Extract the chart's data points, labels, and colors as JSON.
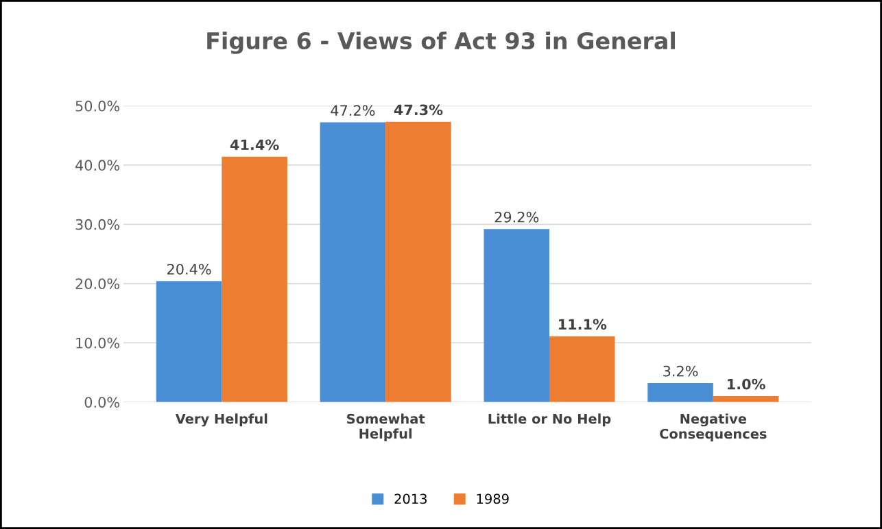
{
  "chart_data": {
    "type": "bar",
    "title": "Figure 6 - Views of Act 93 in General",
    "categories": [
      "Very Helpful",
      "Somewhat\nHelpful",
      "Little or No Help",
      "Negative\nConsequences"
    ],
    "series": [
      {
        "name": "2013",
        "color": "#4a8fd6",
        "values": [
          20.4,
          47.2,
          29.2,
          3.2
        ],
        "value_labels": [
          "20.4%",
          "47.2%",
          "29.2%",
          "3.2%"
        ]
      },
      {
        "name": "1989",
        "color": "#ed7d31",
        "values": [
          41.4,
          47.3,
          11.1,
          1.0
        ],
        "value_labels": [
          "41.4%",
          "47.3%",
          "11.1%",
          "1.0%"
        ]
      }
    ],
    "ylim": [
      0,
      50
    ],
    "yticks": [
      {
        "value": 0,
        "label": "0.0%"
      },
      {
        "value": 10,
        "label": "10.0%"
      },
      {
        "value": 20,
        "label": "20.0%"
      },
      {
        "value": 30,
        "label": "30.0%"
      },
      {
        "value": 40,
        "label": "40.0%"
      },
      {
        "value": 50,
        "label": "50.0%"
      }
    ],
    "grid": "y",
    "legend": "bottom"
  }
}
